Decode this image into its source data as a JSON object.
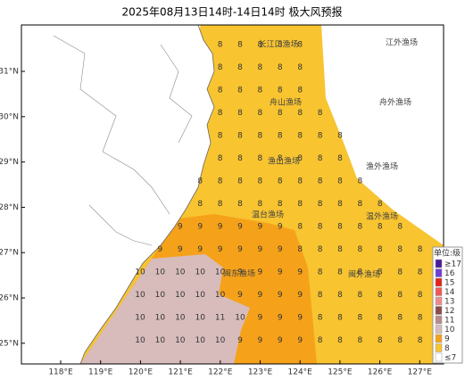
{
  "title": "2025年08月13日14时-14日14时 极大风预报",
  "lat_ticks": [
    "31°N",
    "30°N",
    "29°N",
    "28°N",
    "27°N",
    "26°N",
    "25°N"
  ],
  "lon_ticks": [
    "118°E",
    "119°E",
    "120°E",
    "121°E",
    "122°E",
    "123°E",
    "124°E",
    "125°E",
    "126°E",
    "127°E"
  ],
  "zones": [
    "长江口渔场",
    "江外渔场",
    "舟山渔场",
    "舟外渔场",
    "渔山渔场",
    "渔外渔场",
    "温台渔场",
    "温外渔场",
    "闽东渔场",
    "闽外渔场"
  ],
  "legend": {
    "title": "单位:级",
    "items": [
      {
        "label": "≥17",
        "color": "#4b1a9c"
      },
      {
        "label": "16",
        "color": "#6f3fd6"
      },
      {
        "label": "15",
        "color": "#e3231c"
      },
      {
        "label": "14",
        "color": "#f25757"
      },
      {
        "label": "13",
        "color": "#f08a8a"
      },
      {
        "label": "12",
        "color": "#8e4a4a"
      },
      {
        "label": "11",
        "color": "#b88a8a"
      },
      {
        "label": "10",
        "color": "#d8bcbc"
      },
      {
        "label": "9",
        "color": "#f5a21a"
      },
      {
        "label": "8",
        "color": "#f8c430"
      },
      {
        "label": "≤7",
        "color": "#ffffff"
      }
    ]
  },
  "grid": {
    "rows": [
      [
        null,
        null,
        null,
        null,
        8,
        8,
        8,
        8,
        8,
        null,
        null,
        null,
        null,
        null,
        null
      ],
      [
        null,
        null,
        null,
        null,
        8,
        8,
        8,
        8,
        8,
        null,
        null,
        null,
        null,
        null,
        null
      ],
      [
        null,
        null,
        null,
        null,
        8,
        8,
        8,
        8,
        8,
        null,
        null,
        null,
        null,
        null,
        null
      ],
      [
        null,
        null,
        null,
        null,
        8,
        8,
        8,
        8,
        8,
        8,
        null,
        null,
        null,
        null,
        null
      ],
      [
        null,
        null,
        null,
        null,
        8,
        8,
        8,
        8,
        8,
        8,
        8,
        null,
        null,
        null,
        null
      ],
      [
        null,
        null,
        null,
        null,
        8,
        8,
        8,
        8,
        8,
        8,
        8,
        null,
        null,
        null,
        null
      ],
      [
        null,
        null,
        null,
        8,
        8,
        8,
        8,
        8,
        8,
        8,
        8,
        8,
        null,
        null,
        null
      ],
      [
        null,
        null,
        null,
        8,
        8,
        8,
        8,
        8,
        8,
        8,
        8,
        8,
        8,
        null,
        null
      ],
      [
        null,
        null,
        9,
        9,
        9,
        9,
        9,
        9,
        8,
        8,
        8,
        8,
        8,
        8,
        null
      ],
      [
        null,
        9,
        9,
        9,
        9,
        9,
        9,
        9,
        8,
        8,
        8,
        8,
        8,
        8,
        8
      ],
      [
        10,
        10,
        10,
        10,
        10,
        9,
        9,
        9,
        9,
        8,
        8,
        8,
        8,
        8,
        8
      ],
      [
        10,
        10,
        10,
        10,
        10,
        9,
        9,
        9,
        9,
        8,
        8,
        8,
        8,
        8,
        8
      ],
      [
        10,
        10,
        10,
        10,
        11,
        10,
        9,
        9,
        9,
        8,
        8,
        8,
        8,
        8,
        8
      ],
      [
        10,
        10,
        10,
        10,
        10,
        9,
        9,
        9,
        9,
        8,
        8,
        8,
        8,
        8,
        8
      ]
    ]
  }
}
